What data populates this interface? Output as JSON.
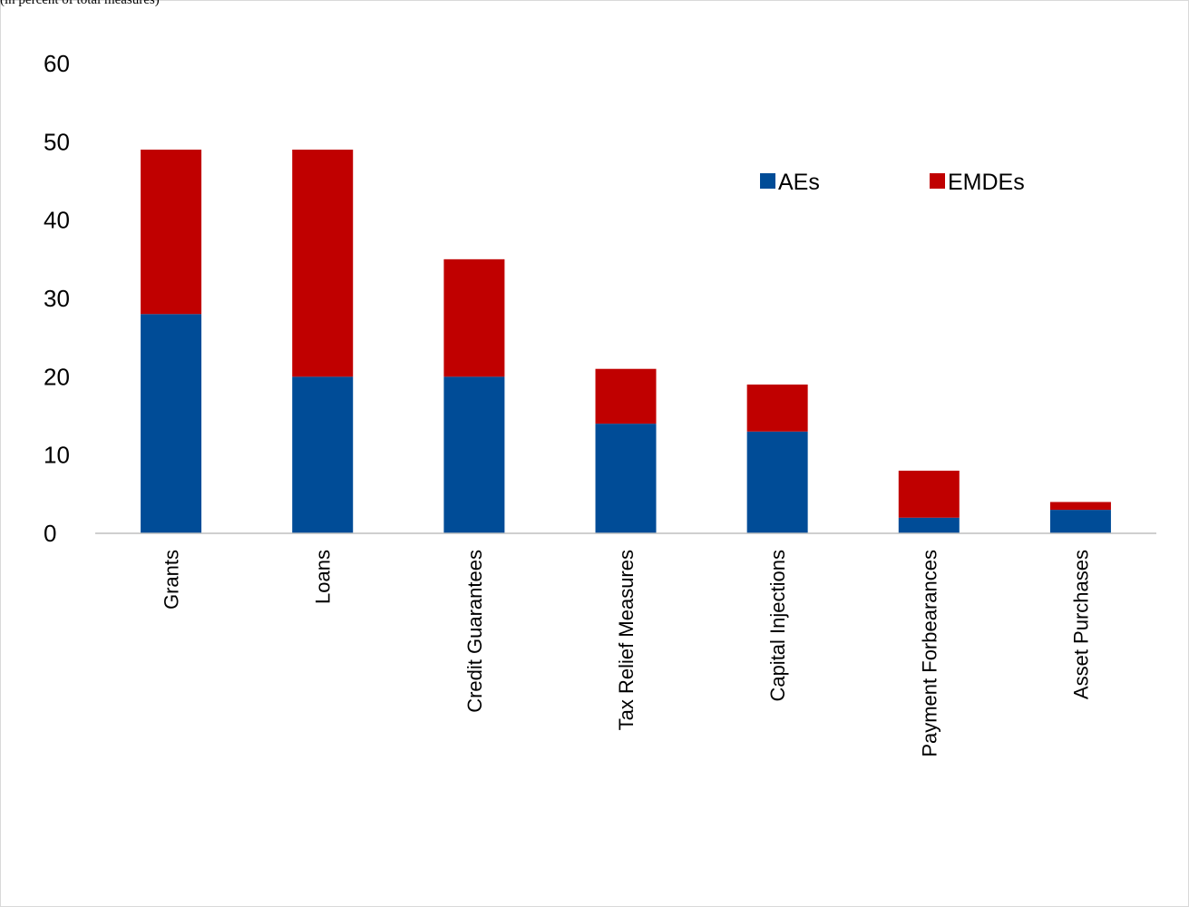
{
  "header": {
    "note": "(in percent of total measures)"
  },
  "chart_data": {
    "type": "bar",
    "stacked": true,
    "categories": [
      "Grants",
      "Loans",
      "Credit Guarantees",
      "Tax Relief Measures",
      "Capital Injections",
      "Payment Forbearances",
      "Asset Purchases"
    ],
    "series": [
      {
        "name": "AEs",
        "color": "#004C97",
        "values": [
          28,
          20,
          20,
          14,
          13,
          2,
          3
        ]
      },
      {
        "name": "EMDEs",
        "color": "#C00000",
        "values": [
          21,
          29,
          15,
          7,
          6,
          6,
          1
        ]
      }
    ],
    "ylim": [
      0,
      60
    ],
    "yticks": [
      0,
      10,
      20,
      30,
      40,
      50,
      60
    ],
    "grid": false,
    "legend": "top-right"
  }
}
